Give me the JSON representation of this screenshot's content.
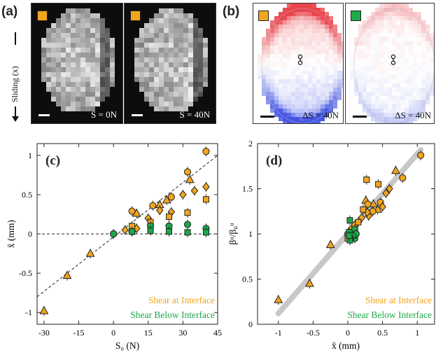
{
  "figure": {
    "panels": {
      "a": {
        "letter": "(a)",
        "sliding_label": "Sliding (x)",
        "images": [
          {
            "caption": "S = 0N",
            "marker_color": "#f2a51e"
          },
          {
            "caption": "S = 40N",
            "marker_color": "#f2a51e"
          }
        ]
      },
      "b": {
        "letter": "(b)",
        "images": [
          {
            "caption": "ΔS = 40N",
            "marker_color": "#f2a51e"
          },
          {
            "caption": "ΔS = 40N",
            "marker_color": "#1ea84a"
          }
        ]
      },
      "c": {
        "letter": "(c)"
      },
      "d": {
        "letter": "(d)"
      }
    },
    "colors": {
      "interface": "#f2a51e",
      "below": "#1ea84a",
      "red": "#e0202a",
      "blue": "#2233cc"
    }
  },
  "chart_data": [
    {
      "panel": "c",
      "type": "scatter",
      "xlabel": "S₀ (N)",
      "ylabel": "x̄ (mm)",
      "xlim": [
        -33,
        45
      ],
      "ylim": [
        -1.15,
        1.15
      ],
      "xticks": [
        "-30",
        "-15",
        "0",
        "15",
        "30",
        "45"
      ],
      "yticks": [
        "-1",
        "-0.5",
        "0",
        "0.5",
        "1"
      ],
      "legend": [
        "Shear at Interface",
        "Shear Below Interface"
      ],
      "legend_placement": "bottom-right",
      "series": [
        {
          "name": "Shear at Interface",
          "marker": "triangle",
          "points": [
            [
              -30,
              -0.98
            ],
            [
              -20,
              -0.53
            ],
            [
              -10,
              -0.25
            ],
            [
              10,
              0.26
            ],
            [
              23,
              0.43
            ],
            [
              33,
              0.69
            ],
            [
              20,
              0.37
            ]
          ]
        },
        {
          "name": "Shear at Interface",
          "marker": "circle",
          "points": [
            [
              0,
              0.0
            ],
            [
              8,
              0.29
            ],
            [
              17,
              0.36
            ],
            [
              25,
              0.47
            ],
            [
              32,
              0.79
            ],
            [
              40,
              1.05
            ]
          ]
        },
        {
          "name": "Shear at Interface",
          "marker": "diamond",
          "points": [
            [
              5,
              0.05
            ],
            [
              10,
              0.07
            ],
            [
              15,
              0.2
            ],
            [
              20,
              0.3
            ],
            [
              25,
              0.28
            ],
            [
              30,
              0.5
            ],
            [
              35,
              0.55
            ],
            [
              40,
              0.6
            ]
          ]
        },
        {
          "name": "Shear at Interface",
          "marker": "square",
          "points": [
            [
              8,
              0.1
            ],
            [
              16,
              0.15
            ],
            [
              24,
              0.22
            ],
            [
              32,
              0.27
            ],
            [
              40,
              0.44
            ]
          ]
        },
        {
          "name": "Shear Below Interface",
          "marker": "circle",
          "points": [
            [
              0,
              0.0
            ],
            [
              8,
              0.03
            ],
            [
              16,
              0.1
            ],
            [
              24,
              0.1
            ],
            [
              32,
              0.12
            ],
            [
              40,
              0.07
            ]
          ]
        },
        {
          "name": "Shear Below Interface",
          "marker": "square",
          "points": [
            [
              8,
              0.03
            ],
            [
              16,
              0.04
            ],
            [
              24,
              0.03
            ],
            [
              32,
              0.02
            ],
            [
              40,
              0.02
            ]
          ]
        }
      ],
      "lines": [
        {
          "style": "dashed",
          "from": [
            -33,
            -0.8
          ],
          "to": [
            45,
            1.0
          ]
        },
        {
          "style": "dashed",
          "from": [
            -33,
            0
          ],
          "to": [
            45,
            0
          ]
        }
      ]
    },
    {
      "panel": "d",
      "type": "scatter",
      "xlabel": "x̄ (mm)",
      "ylabel": "βᵘ/β₀ᵘ",
      "xlim": [
        -1.3,
        1.25
      ],
      "ylim": [
        0,
        2
      ],
      "xticks": [
        "-1",
        "-0.5",
        "0",
        "0.5",
        "1"
      ],
      "yticks": [
        "0",
        "0.5",
        "1",
        "1.5",
        "2"
      ],
      "legend": [
        "Shear at Interface",
        "Shear Below Interface"
      ],
      "legend_placement": "bottom-right",
      "series": [
        {
          "name": "Shear at Interface",
          "marker": "triangle",
          "points": [
            [
              -1.0,
              0.27
            ],
            [
              -0.55,
              0.45
            ],
            [
              -0.25,
              0.88
            ],
            [
              0.26,
              1.37
            ],
            [
              0.43,
              1.27
            ],
            [
              0.69,
              1.7
            ],
            [
              0.37,
              1.33
            ]
          ]
        },
        {
          "name": "Shear at Interface",
          "marker": "circle",
          "points": [
            [
              0.29,
              1.33
            ],
            [
              0.36,
              1.25
            ],
            [
              0.47,
              1.35
            ],
            [
              0.79,
              1.62
            ],
            [
              1.05,
              1.87
            ],
            [
              0.05,
              1.05
            ]
          ]
        },
        {
          "name": "Shear at Interface",
          "marker": "diamond",
          "points": [
            [
              0.05,
              0.97
            ],
            [
              0.07,
              1.02
            ],
            [
              0.2,
              1.18
            ],
            [
              0.3,
              1.2
            ],
            [
              0.28,
              1.24
            ],
            [
              0.5,
              1.3
            ],
            [
              0.55,
              1.45
            ],
            [
              0.6,
              1.5
            ]
          ]
        },
        {
          "name": "Shear at Interface",
          "marker": "square",
          "points": [
            [
              0.1,
              1.1
            ],
            [
              0.15,
              1.13
            ],
            [
              0.22,
              1.27
            ],
            [
              0.27,
              1.6
            ],
            [
              0.44,
              1.55
            ],
            [
              0.0,
              0.95
            ]
          ]
        },
        {
          "name": "Shear Below Interface",
          "marker": "circle",
          "points": [
            [
              0.0,
              1.0
            ],
            [
              0.03,
              0.97
            ],
            [
              0.1,
              1.05
            ],
            [
              0.1,
              0.95
            ],
            [
              0.12,
              1.0
            ],
            [
              0.07,
              0.98
            ]
          ]
        },
        {
          "name": "Shear Below Interface",
          "marker": "square",
          "points": [
            [
              0.03,
              1.15
            ],
            [
              0.04,
              0.95
            ],
            [
              0.03,
              0.93
            ],
            [
              0.02,
              1.02
            ],
            [
              0.02,
              0.98
            ]
          ]
        }
      ],
      "lines": [
        {
          "style": "gray-band",
          "from": [
            -1.0,
            0.12
          ],
          "to": [
            1.05,
            1.93
          ]
        }
      ]
    }
  ]
}
